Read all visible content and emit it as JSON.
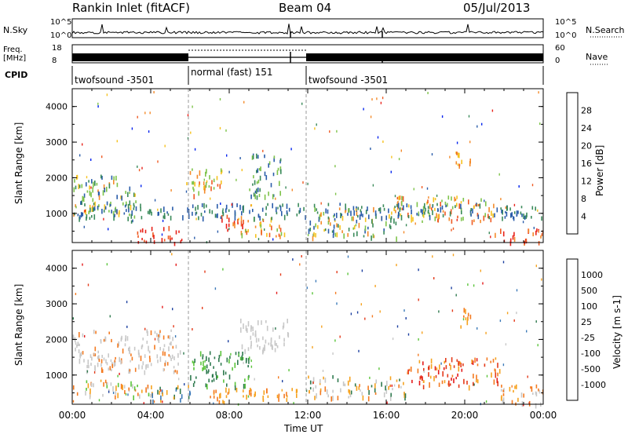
{
  "header": {
    "station": "Rankin Inlet (fitACF)",
    "beam": "Beam 04",
    "date": "05/Jul/2013"
  },
  "status_panels": {
    "nsky_label": "N.Sky",
    "nsky_ticks": [
      "10^5",
      "10^0"
    ],
    "nsearch_label": "N.Search",
    "freq_label_1": "Freq.",
    "freq_label_2": "[MHz]",
    "freq_ticks": [
      "18",
      "8"
    ],
    "nave_ticks": [
      "60",
      "0"
    ],
    "nave_label": "Nave",
    "cpid_label": "CPID",
    "cpid_segments": [
      {
        "label": "twofsound -3501",
        "start": 0,
        "end": 6
      },
      {
        "label": "normal (fast) 151",
        "start": 6,
        "end": 12
      },
      {
        "label": "twofsound -3501",
        "start": 12,
        "end": 24
      }
    ]
  },
  "chart_data": [
    {
      "type": "heatmap",
      "title": "Power",
      "ylabel": "Slant Range [km]",
      "xlabel": "",
      "ylim": [
        180,
        4500
      ],
      "xlim": [
        0,
        24
      ],
      "yticks": [
        "1000",
        "2000",
        "3000",
        "4000"
      ],
      "colorbar_label": "Power [dB]",
      "colorbar_ticks": [
        "4",
        "8",
        "12",
        "16",
        "20",
        "24",
        "28"
      ],
      "colorbar_colors": [
        "#0022ee",
        "#2a5caa",
        "#3a8a5a",
        "#7ec34a",
        "#f6c21e",
        "#f48a2a",
        "#ef5a22",
        "#e82219"
      ],
      "scatter_regions": [
        {
          "t0": 0.0,
          "t1": 2.6,
          "r0": 900,
          "r1": 2100,
          "palette": [
            2,
            3,
            4,
            5,
            1
          ]
        },
        {
          "t0": 2.6,
          "t1": 3.3,
          "r0": 800,
          "r1": 1800,
          "palette": [
            1,
            2,
            3,
            4
          ]
        },
        {
          "t0": 3.3,
          "t1": 5.6,
          "r0": 200,
          "r1": 650,
          "palette": [
            7,
            6,
            7
          ]
        },
        {
          "t0": 5.8,
          "t1": 7.6,
          "r0": 1450,
          "r1": 2300,
          "palette": [
            4,
            5,
            6,
            3
          ]
        },
        {
          "t0": 7.3,
          "t1": 8.7,
          "r0": 500,
          "r1": 1000,
          "palette": [
            5,
            6,
            7
          ]
        },
        {
          "t0": 8.6,
          "t1": 10.8,
          "r0": 350,
          "r1": 900,
          "palette": [
            3,
            4,
            5,
            6
          ]
        },
        {
          "t0": 9.0,
          "t1": 10.6,
          "r0": 1500,
          "r1": 2700,
          "palette": [
            1,
            2,
            3
          ]
        },
        {
          "t0": 12.0,
          "t1": 16.5,
          "r0": 350,
          "r1": 1200,
          "palette": [
            1,
            2,
            3,
            4,
            5
          ]
        },
        {
          "t0": 16.5,
          "t1": 21.5,
          "r0": 800,
          "r1": 1500,
          "palette": [
            4,
            5,
            6,
            3
          ]
        },
        {
          "t0": 21.5,
          "t1": 24.0,
          "r0": 200,
          "r1": 600,
          "palette": [
            6,
            7,
            5
          ]
        },
        {
          "t0": 19.5,
          "t1": 20.3,
          "r0": 2300,
          "r1": 2900,
          "palette": [
            4,
            5,
            6
          ]
        },
        {
          "t0": 0.0,
          "t1": 24.0,
          "r0": 900,
          "r1": 1300,
          "palette": [
            1,
            2
          ]
        }
      ]
    },
    {
      "type": "heatmap",
      "title": "Velocity",
      "ylabel": "Slant Range [km]",
      "xlabel": "Time UT",
      "ylim": [
        180,
        4500
      ],
      "xlim": [
        0,
        24
      ],
      "yticks": [
        "1000",
        "2000",
        "3000",
        "4000"
      ],
      "xticks": [
        "00:00",
        "04:00",
        "08:00",
        "12:00",
        "16:00",
        "20:00",
        "00:00"
      ],
      "colorbar_label": "Velocity [m s-1]",
      "colorbar_ticks": [
        "1000",
        "500",
        "100",
        "25",
        "-25",
        "-100",
        "-500",
        "-1000"
      ],
      "colorbar_colors": [
        "#1b3fa0",
        "#3c7ab8",
        "#2f7a4f",
        "#5ac43a",
        "#c8c8c8",
        "#f6a21e",
        "#f47a20",
        "#e43a1a",
        "#e41a1a"
      ],
      "scatter_regions": [
        {
          "t0": 0.0,
          "t1": 5.5,
          "r0": 1100,
          "r1": 2300,
          "palette": [
            4,
            4,
            4,
            6
          ]
        },
        {
          "t0": 0.0,
          "t1": 4.0,
          "r0": 400,
          "r1": 900,
          "palette": [
            5,
            6,
            4,
            3
          ]
        },
        {
          "t0": 4.0,
          "t1": 6.0,
          "r0": 300,
          "r1": 800,
          "palette": [
            1,
            2,
            5
          ]
        },
        {
          "t0": 6.0,
          "t1": 9.0,
          "r0": 700,
          "r1": 1700,
          "palette": [
            2,
            2,
            3
          ]
        },
        {
          "t0": 7.0,
          "t1": 11.5,
          "r0": 250,
          "r1": 650,
          "palette": [
            5,
            6,
            5
          ]
        },
        {
          "t0": 8.5,
          "t1": 11.0,
          "r0": 1700,
          "r1": 2600,
          "palette": [
            4,
            4
          ]
        },
        {
          "t0": 12.0,
          "t1": 17.0,
          "r0": 400,
          "r1": 1000,
          "palette": [
            4,
            5,
            6,
            2
          ]
        },
        {
          "t0": 17.0,
          "t1": 21.8,
          "r0": 700,
          "r1": 1500,
          "palette": [
            6,
            7,
            8,
            5
          ]
        },
        {
          "t0": 21.8,
          "t1": 24.0,
          "r0": 200,
          "r1": 800,
          "palette": [
            5,
            6,
            4
          ]
        },
        {
          "t0": 19.6,
          "t1": 20.3,
          "r0": 2300,
          "r1": 2900,
          "palette": [
            5,
            6
          ]
        }
      ]
    }
  ]
}
